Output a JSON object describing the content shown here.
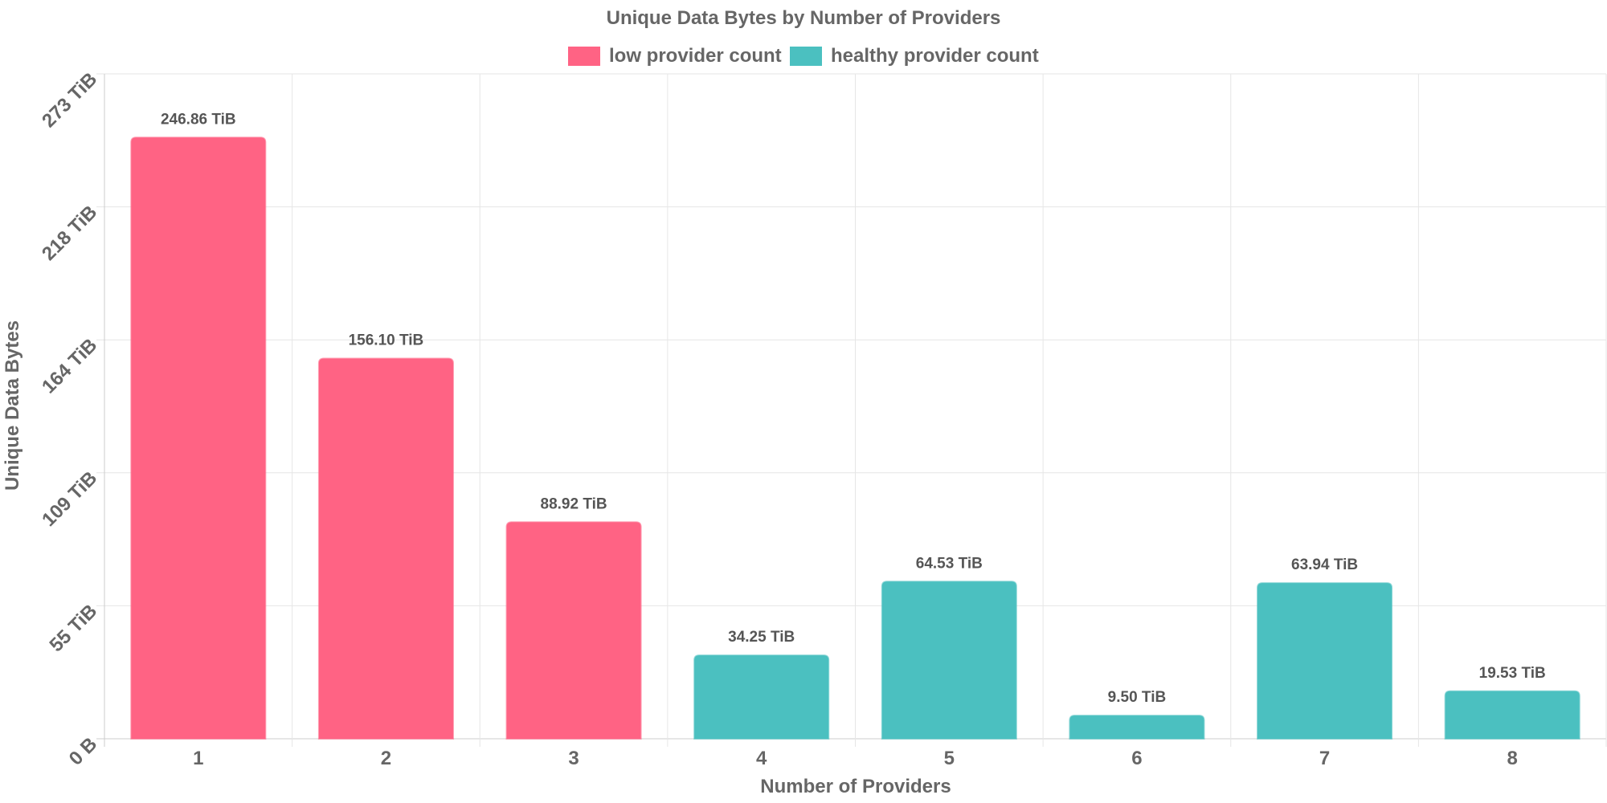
{
  "chart_data": {
    "type": "bar",
    "title": "Unique Data Bytes by Number of Providers",
    "xlabel": "Number of Providers",
    "ylabel": "Unique Data Bytes",
    "categories": [
      "1",
      "2",
      "3",
      "4",
      "5",
      "6",
      "7",
      "8"
    ],
    "values": [
      246.86,
      156.1,
      88.92,
      34.25,
      64.53,
      9.5,
      63.94,
      19.53
    ],
    "value_labels": [
      "246.86 TiB",
      "156.10 TiB",
      "88.92 TiB",
      "34.25 TiB",
      "64.53 TiB",
      "9.50 TiB",
      "63.94 TiB",
      "19.53 TiB"
    ],
    "value_unit": "TiB",
    "bar_series": [
      0,
      0,
      0,
      1,
      1,
      1,
      1,
      1
    ],
    "ylim": [
      0,
      273
    ],
    "y_ticks": [
      0,
      54.6,
      109.2,
      163.8,
      218.4,
      273
    ],
    "y_tick_labels": [
      "0 B",
      "55 TiB",
      "109 TiB",
      "164 TiB",
      "218 TiB",
      "273 TiB"
    ],
    "grid": true,
    "legend_position": "top-center",
    "series": [
      {
        "name": "low provider count",
        "color": "#ff6384"
      },
      {
        "name": "healthy provider count",
        "color": "#4bc0c0"
      }
    ]
  }
}
